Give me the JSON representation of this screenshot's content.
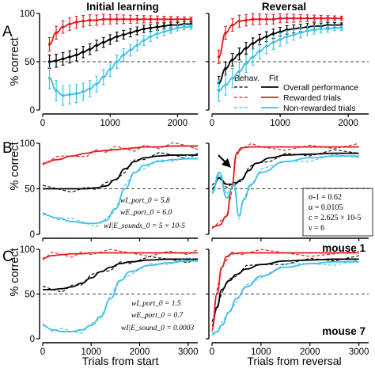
{
  "panel_labels": {
    "a": "A",
    "b": "B",
    "c": "C"
  },
  "titles": {
    "left": "Initial learning",
    "right": "Reversal"
  },
  "ylabel": "% correct",
  "xlabels": {
    "left": "Trials from start",
    "right": "Trials from reversal"
  },
  "legend": {
    "header_behav": "Behav.",
    "header_fit": "Fit",
    "items": [
      "Overall performance",
      "Rewarded trials",
      "Non-rewarded trials"
    ]
  },
  "params_b_left": [
    "wI_port_0 = 5.8",
    "wE_port_0 = 6.0",
    "wI|E_sounds_0 = 5 × 10-5"
  ],
  "params_b_right": [
    "σ-1 = 0.62",
    "α = 0.0105",
    "c = 2.625 × 10-5",
    "ν = 6"
  ],
  "params_c_left": [
    "wI_port_0 = 1.5",
    "wE_port_0 = 0.7",
    "wI|E_sound_0 = 0.0003"
  ],
  "mouse_labels": {
    "b": "mouse 1",
    "c": "mouse 7"
  },
  "colors": {
    "overall": "#000000",
    "rewarded": "#e31a1c",
    "nonrewarded": "#3ec0e8",
    "chance": "#444444"
  },
  "chart_data": [
    {
      "type": "line",
      "panel": "A",
      "subpanel": "Initial learning",
      "ylim": [
        0,
        100
      ],
      "xlim": [
        0,
        2300
      ],
      "yticks": [
        0,
        50,
        100
      ],
      "xticks": [
        0,
        1000,
        2000
      ],
      "chance_line": 50,
      "series": [
        {
          "name": "Overall performance",
          "x": [
            100,
            200,
            300,
            400,
            500,
            600,
            700,
            800,
            900,
            1000,
            1100,
            1200,
            1300,
            1400,
            1500,
            1600,
            1700,
            1800,
            1900,
            2000,
            2100,
            2200
          ],
          "y": [
            50,
            51,
            53,
            55,
            57,
            60,
            63,
            67,
            70,
            73,
            76,
            78,
            80,
            82,
            84,
            85,
            86,
            87,
            88,
            88,
            89,
            89
          ]
        },
        {
          "name": "Rewarded trials",
          "x": [
            100,
            200,
            300,
            400,
            500,
            600,
            700,
            800,
            900,
            1000,
            1100,
            1200,
            1300,
            1400,
            1500,
            1600,
            1700,
            1800,
            1900,
            2000,
            2100,
            2200
          ],
          "y": [
            68,
            80,
            86,
            89,
            91,
            92,
            93,
            93,
            94,
            94,
            94,
            94,
            94,
            94,
            94,
            94,
            94,
            94,
            94,
            94,
            94,
            94
          ]
        },
        {
          "name": "Non-rewarded trials",
          "x": [
            100,
            200,
            300,
            400,
            500,
            600,
            700,
            800,
            900,
            1000,
            1100,
            1200,
            1300,
            1400,
            1500,
            1600,
            1700,
            1800,
            1900,
            2000,
            2100,
            2200
          ],
          "y": [
            33,
            20,
            15,
            16,
            17,
            19,
            22,
            27,
            34,
            42,
            50,
            57,
            62,
            67,
            72,
            76,
            79,
            81,
            83,
            85,
            86,
            86
          ]
        }
      ]
    },
    {
      "type": "line",
      "panel": "A",
      "subpanel": "Reversal",
      "ylim": [
        0,
        100
      ],
      "xlim": [
        0,
        2300
      ],
      "yticks": [
        0,
        50,
        100
      ],
      "xticks": [
        0,
        1000,
        2000
      ],
      "chance_line": 50,
      "series": [
        {
          "name": "Overall performance",
          "x": [
            100,
            200,
            300,
            400,
            500,
            600,
            700,
            800,
            900,
            1000,
            1100,
            1200,
            1300,
            1400,
            1500,
            1600,
            1700,
            1800,
            1900
          ],
          "y": [
            28,
            43,
            52,
            58,
            64,
            69,
            73,
            76,
            79,
            81,
            83,
            84,
            85,
            86,
            87,
            87,
            88,
            88,
            88
          ]
        },
        {
          "name": "Rewarded trials",
          "x": [
            100,
            200,
            300,
            400,
            500,
            600,
            700,
            800,
            900,
            1000,
            1100,
            1200,
            1300,
            1400,
            1500,
            1600,
            1700,
            1800,
            1900
          ],
          "y": [
            55,
            80,
            88,
            92,
            93,
            94,
            94,
            94,
            94,
            95,
            95,
            95,
            95,
            95,
            95,
            95,
            95,
            95,
            95
          ]
        },
        {
          "name": "Non-rewarded trials",
          "x": [
            100,
            200,
            300,
            400,
            500,
            600,
            700,
            800,
            900,
            1000,
            1100,
            1200,
            1300,
            1400,
            1500,
            1600,
            1700,
            1800,
            1900
          ],
          "y": [
            20,
            26,
            33,
            40,
            48,
            55,
            61,
            66,
            70,
            73,
            76,
            78,
            80,
            82,
            83,
            84,
            84,
            85,
            85
          ]
        }
      ]
    },
    {
      "type": "line",
      "panel": "B",
      "subpanel": "mouse 1 initial learning",
      "ylim": [
        0,
        100
      ],
      "xlim": [
        0,
        3200
      ],
      "yticks": [
        0,
        50,
        100
      ],
      "xticks": [
        0,
        1000,
        2000,
        3000
      ],
      "chance_line": 50,
      "series": [
        {
          "name": "Overall performance",
          "x": [
            0,
            300,
            600,
            900,
            1100,
            1300,
            1500,
            1700,
            1900,
            2100,
            2400,
            2700,
            3000,
            3200
          ],
          "y": [
            50,
            50,
            50,
            50,
            51,
            53,
            60,
            72,
            80,
            84,
            86,
            87,
            87,
            87
          ]
        },
        {
          "name": "Rewarded trials",
          "x": [
            0,
            300,
            600,
            900,
            1100,
            1300,
            1500,
            1700,
            1900,
            2100,
            2400,
            2700,
            3000,
            3200
          ],
          "y": [
            78,
            82,
            86,
            89,
            91,
            92,
            93,
            94,
            95,
            96,
            96,
            97,
            97,
            97
          ]
        },
        {
          "name": "Non-rewarded trials",
          "x": [
            0,
            300,
            600,
            900,
            1100,
            1300,
            1500,
            1700,
            1900,
            2100,
            2400,
            2700,
            3000,
            3200
          ],
          "y": [
            22,
            18,
            14,
            12,
            12,
            15,
            28,
            50,
            68,
            76,
            80,
            82,
            83,
            83
          ]
        }
      ]
    },
    {
      "type": "line",
      "panel": "B",
      "subpanel": "mouse 1 reversal",
      "ylim": [
        0,
        100
      ],
      "xlim": [
        0,
        3200
      ],
      "yticks": [
        0,
        50,
        100
      ],
      "xticks": [
        0,
        1000,
        2000,
        3000
      ],
      "chance_line": 50,
      "series": [
        {
          "name": "Overall performance",
          "x": [
            0,
            150,
            300,
            450,
            600,
            750,
            900,
            1200,
            1500,
            2000,
            2500,
            3000
          ],
          "y": [
            50,
            62,
            55,
            55,
            60,
            70,
            78,
            84,
            87,
            88,
            89,
            89
          ]
        },
        {
          "name": "Rewarded trials",
          "x": [
            0,
            150,
            300,
            400,
            500,
            600,
            800,
            1000,
            1500,
            2000,
            2500,
            3000
          ],
          "y": [
            8,
            10,
            20,
            50,
            88,
            95,
            96,
            96,
            96,
            96,
            96,
            96
          ]
        },
        {
          "name": "Non-rewarded trials",
          "x": [
            0,
            150,
            300,
            450,
            550,
            650,
            800,
            1000,
            1500,
            2000,
            2500,
            3000
          ],
          "y": [
            45,
            68,
            40,
            55,
            20,
            38,
            55,
            68,
            80,
            84,
            86,
            86
          ]
        }
      ]
    },
    {
      "type": "line",
      "panel": "C",
      "subpanel": "mouse 7 initial learning",
      "ylim": [
        0,
        100
      ],
      "xlim": [
        0,
        3200
      ],
      "yticks": [
        0,
        50,
        100
      ],
      "xticks": [
        0,
        1000,
        2000,
        3000
      ],
      "chance_line": 50,
      "series": [
        {
          "name": "Overall performance",
          "x": [
            0,
            200,
            400,
            600,
            800,
            1000,
            1200,
            1400,
            1600,
            1800,
            2200,
            2600,
            3000,
            3200
          ],
          "y": [
            55,
            55,
            56,
            58,
            62,
            68,
            75,
            80,
            84,
            86,
            88,
            89,
            89,
            89
          ]
        },
        {
          "name": "Rewarded trials",
          "x": [
            0,
            200,
            400,
            600,
            800,
            1000,
            1400,
            1800,
            2200,
            2600,
            3000,
            3200
          ],
          "y": [
            90,
            93,
            94,
            95,
            95,
            96,
            96,
            96,
            96,
            96,
            96,
            96
          ]
        },
        {
          "name": "Non-rewarded trials",
          "x": [
            0,
            200,
            400,
            600,
            800,
            1000,
            1200,
            1400,
            1600,
            1800,
            2200,
            2600,
            3000,
            3200
          ],
          "y": [
            15,
            10,
            8,
            8,
            10,
            15,
            25,
            45,
            65,
            75,
            82,
            85,
            87,
            87
          ]
        }
      ]
    },
    {
      "type": "line",
      "panel": "C",
      "subpanel": "mouse 7 reversal",
      "ylim": [
        0,
        100
      ],
      "xlim": [
        0,
        3200
      ],
      "yticks": [
        0,
        50,
        100
      ],
      "xticks": [
        0,
        1000,
        2000,
        3000
      ],
      "chance_line": 50,
      "series": [
        {
          "name": "Overall performance",
          "x": [
            0,
            100,
            200,
            350,
            500,
            700,
            1000,
            1500,
            2000,
            2500,
            3000
          ],
          "y": [
            15,
            35,
            55,
            65,
            72,
            78,
            83,
            87,
            88,
            89,
            89
          ]
        },
        {
          "name": "Rewarded trials",
          "x": [
            0,
            100,
            200,
            300,
            400,
            600,
            1000,
            1500,
            2000,
            3000
          ],
          "y": [
            10,
            50,
            80,
            92,
            95,
            96,
            96,
            96,
            96,
            96
          ]
        },
        {
          "name": "Non-rewarded trials",
          "x": [
            0,
            100,
            200,
            350,
            500,
            700,
            1000,
            1500,
            2000,
            2500,
            3000
          ],
          "y": [
            5,
            8,
            15,
            30,
            45,
            58,
            70,
            80,
            84,
            86,
            86
          ]
        }
      ]
    }
  ]
}
